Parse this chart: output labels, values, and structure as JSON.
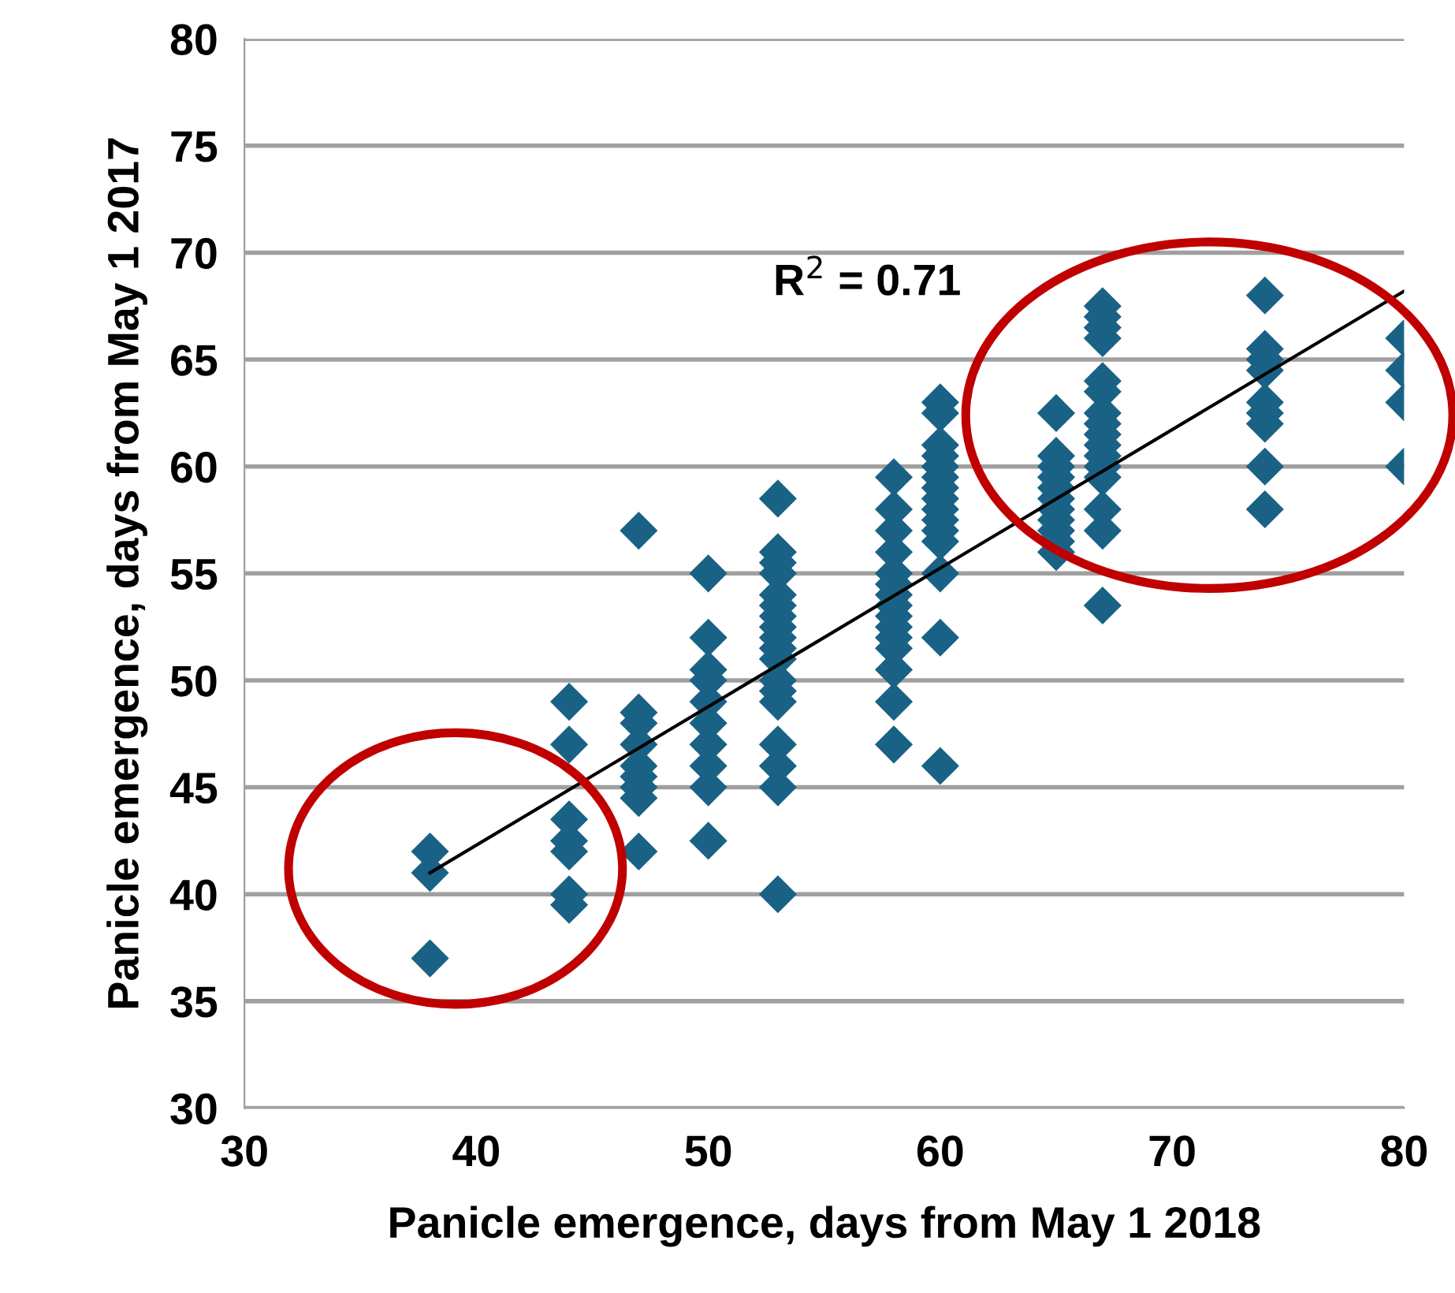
{
  "chart_data": {
    "type": "scatter",
    "xlabel": "Panicle emergence, days from May 1 2018",
    "ylabel": "Panicle emergence, days from May 1 2017",
    "xlim": [
      30,
      80
    ],
    "xticks": [
      30,
      40,
      50,
      60,
      70,
      80
    ],
    "ylim": [
      30,
      80
    ],
    "yticks": [
      30,
      35,
      40,
      45,
      50,
      55,
      60,
      65,
      70,
      75,
      80
    ],
    "grid": "y",
    "legend": false,
    "series": [
      {
        "color": "#1a6285",
        "marker": "diamond",
        "x": [
          38,
          38,
          38,
          44,
          44,
          44,
          44,
          44,
          44,
          44,
          47,
          47,
          47,
          47,
          47,
          47,
          47,
          47,
          47,
          50,
          50,
          50,
          50,
          50,
          50,
          50,
          50,
          50,
          50,
          53,
          53,
          53,
          53,
          53,
          53,
          53,
          53,
          53,
          53,
          53,
          53,
          53,
          53,
          53,
          53,
          53,
          53,
          58,
          58,
          58,
          58,
          58,
          58,
          58,
          58,
          58,
          58,
          58,
          58,
          58,
          58,
          58,
          60,
          60,
          60,
          60,
          60,
          60,
          60,
          60,
          60,
          60,
          60,
          60,
          60,
          60,
          60,
          65,
          65,
          65,
          65,
          65,
          65,
          65,
          65,
          65,
          65,
          65,
          67,
          67,
          67,
          67,
          67,
          67,
          67,
          67,
          67,
          67,
          67,
          67,
          67,
          67,
          67,
          67,
          74,
          74,
          74,
          74,
          74,
          74,
          74,
          74,
          74,
          80,
          80,
          80,
          80
        ],
        "values": [
          42,
          41,
          37,
          49,
          47,
          43.5,
          42.5,
          42,
          40,
          39.5,
          57,
          48.5,
          48,
          47,
          46,
          45.5,
          45,
          44.5,
          42,
          55,
          52,
          50.5,
          50,
          49,
          48,
          47,
          46,
          45,
          42.5,
          58.5,
          56,
          55.5,
          55,
          54,
          53.5,
          53,
          52.5,
          52,
          51.5,
          51,
          50,
          49.5,
          49,
          47,
          46,
          45,
          40,
          59.5,
          58,
          57,
          56,
          55,
          54.5,
          54,
          53.5,
          53,
          52.5,
          52,
          51.5,
          50.5,
          49,
          47,
          63,
          62.5,
          61,
          60.5,
          60,
          59.5,
          59,
          58.5,
          58,
          57.5,
          57,
          56.5,
          55,
          52,
          46,
          62.5,
          60.5,
          60,
          59.5,
          59,
          58.5,
          58,
          57.5,
          57,
          56.5,
          56,
          67.5,
          67,
          66.5,
          66,
          64,
          63.5,
          62.5,
          62,
          61.5,
          61,
          60.5,
          60,
          59.5,
          58,
          57,
          53.5,
          68,
          65.5,
          65,
          64.5,
          63,
          62.5,
          62,
          60,
          58,
          66,
          64.5,
          63,
          60
        ]
      },
      {
        "type": "line",
        "marker": "none",
        "color": "#000000",
        "x": [
          38,
          80
        ],
        "values": [
          41,
          68.2
        ]
      }
    ],
    "annotations": [
      "R$^{2}$ = 0.71"
    ]
  }
}
